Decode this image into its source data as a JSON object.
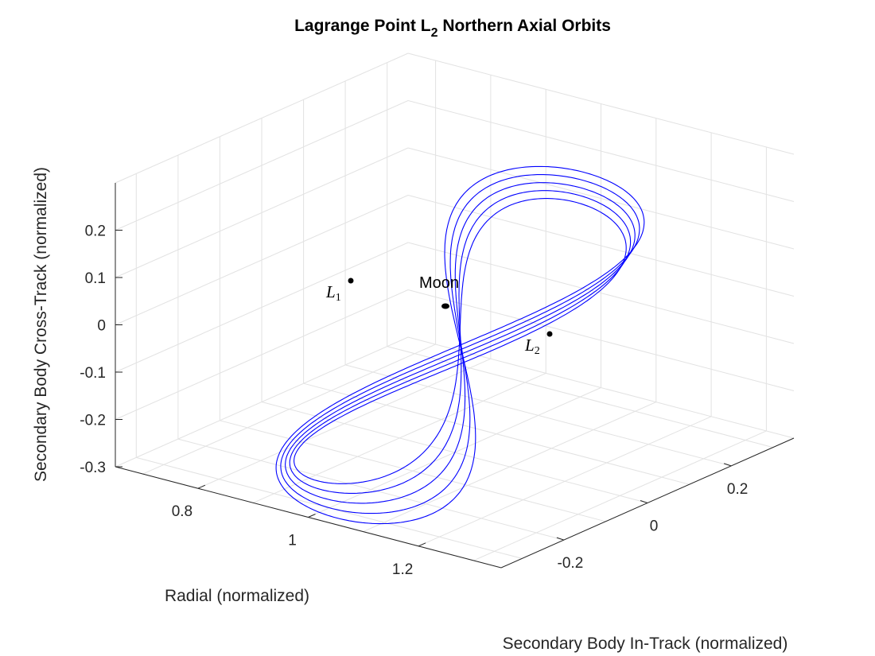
{
  "chart_data": {
    "type": "line3d",
    "title": "Lagrange Point L2 Northern Axial Orbits",
    "title_main": "Lagrange Point L",
    "title_sub": "2",
    "title_rest": " Northern Axial Orbits",
    "xlabel": "Radial (normalized)",
    "ylabel": "Secondary Body In-Track (normalized)",
    "zlabel": "Secondary Body Cross-Track (normalized)",
    "x_ticks": [
      "0.8",
      "1",
      "1.2"
    ],
    "y_ticks": [
      "-0.2",
      "0",
      "0.2"
    ],
    "z_ticks": [
      "0.2",
      "0.1",
      "0",
      "-0.1",
      "-0.2",
      "-0.3"
    ],
    "x_range": [
      0.65,
      1.35
    ],
    "y_range": [
      -0.35,
      0.35
    ],
    "z_range": [
      -0.3,
      0.3
    ],
    "grid": true,
    "line_color": "#0000ff",
    "points": [
      {
        "name": "L1",
        "label": "L",
        "sub": "1",
        "x": 0.84,
        "y": 0.0,
        "z": 0.0
      },
      {
        "name": "Moon",
        "label": "Moon",
        "x": 0.99,
        "y": 0.0,
        "z": 0.0
      },
      {
        "name": "L2",
        "label": "L",
        "sub": "2",
        "x": 1.16,
        "y": 0.0,
        "z": 0.0
      }
    ],
    "series": [
      {
        "values": "orbit-1"
      },
      {
        "values": "orbit-2"
      },
      {
        "values": "orbit-3"
      },
      {
        "values": "orbit-4"
      },
      {
        "values": "orbit-5"
      }
    ]
  }
}
